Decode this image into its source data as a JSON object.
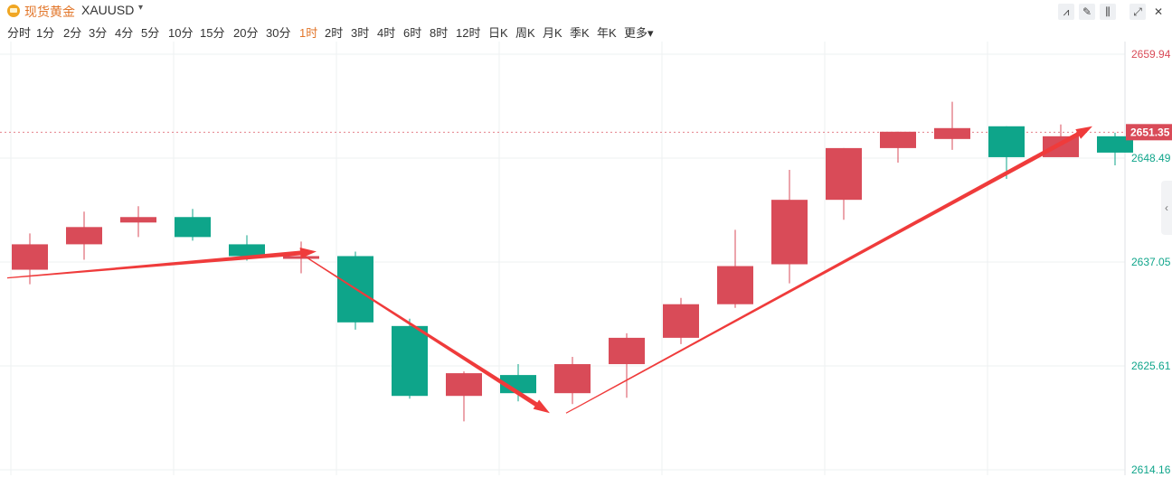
{
  "header": {
    "title_cn": "现货黄金",
    "symbol": "XAUUSD",
    "caret": "▾",
    "tools": [
      {
        "name": "indicator-icon",
        "glyph": "⩘"
      },
      {
        "name": "draw-icon",
        "glyph": "✎"
      },
      {
        "name": "candle-type-icon",
        "glyph": "⫼"
      },
      {
        "name": "fullscreen-icon",
        "glyph": "⤢"
      },
      {
        "name": "close-icon",
        "glyph": "✕"
      }
    ]
  },
  "periods": [
    {
      "label": "分时",
      "active": false
    },
    {
      "label": "1分",
      "active": false
    },
    {
      "label": "2分",
      "active": false
    },
    {
      "label": "3分",
      "active": false
    },
    {
      "label": "4分",
      "active": false
    },
    {
      "label": "5分",
      "active": false
    },
    {
      "label": "10分",
      "active": false
    },
    {
      "label": "15分",
      "active": false
    },
    {
      "label": "20分",
      "active": false
    },
    {
      "label": "30分",
      "active": false
    },
    {
      "label": "1时",
      "active": true
    },
    {
      "label": "2时",
      "active": false
    },
    {
      "label": "3时",
      "active": false
    },
    {
      "label": "4时",
      "active": false
    },
    {
      "label": "6时",
      "active": false
    },
    {
      "label": "8时",
      "active": false
    },
    {
      "label": "12时",
      "active": false
    },
    {
      "label": "日K",
      "active": false
    },
    {
      "label": "周K",
      "active": false
    },
    {
      "label": "月K",
      "active": false
    },
    {
      "label": "季K",
      "active": false
    },
    {
      "label": "年K",
      "active": false
    },
    {
      "label": "更多▾",
      "active": false
    }
  ],
  "side_tab": {
    "glyph": "‹"
  },
  "colors": {
    "up": "#d94b58",
    "down": "#0ea58a",
    "arrow": "#ef3b3b",
    "grid": "#eef0f2",
    "current_price_bg": "#d94b58",
    "axis_up_text": "#d94b58",
    "axis_down_text": "#10a58b"
  },
  "chart_data": {
    "type": "candlestick",
    "ylim": [
      2614.16,
      2659.94
    ],
    "y_ticks": [
      {
        "value": 2659.94,
        "label": "2659.94",
        "tone": "up"
      },
      {
        "value": 2648.49,
        "label": "2648.49",
        "tone": "down"
      },
      {
        "value": 2637.05,
        "label": "2637.05",
        "tone": "down"
      },
      {
        "value": 2625.61,
        "label": "2625.61",
        "tone": "down"
      },
      {
        "value": 2614.16,
        "label": "2614.16",
        "tone": "down"
      }
    ],
    "current_price": {
      "value": 2651.35,
      "label": "2651.35"
    },
    "candles": [
      {
        "open": 2636.2,
        "close": 2639.0,
        "high": 2640.2,
        "low": 2634.6,
        "dir": "up"
      },
      {
        "open": 2639.0,
        "close": 2640.9,
        "high": 2642.6,
        "low": 2637.3,
        "dir": "up"
      },
      {
        "open": 2641.4,
        "close": 2642.0,
        "high": 2643.2,
        "low": 2639.8,
        "dir": "up"
      },
      {
        "open": 2642.0,
        "close": 2639.8,
        "high": 2642.9,
        "low": 2639.4,
        "dir": "down"
      },
      {
        "open": 2639.0,
        "close": 2637.7,
        "high": 2640.0,
        "low": 2637.2,
        "dir": "down"
      },
      {
        "open": 2637.4,
        "close": 2637.7,
        "high": 2639.3,
        "low": 2635.8,
        "dir": "up"
      },
      {
        "open": 2637.7,
        "close": 2630.4,
        "high": 2638.2,
        "low": 2629.6,
        "dir": "down"
      },
      {
        "open": 2630.0,
        "close": 2622.3,
        "high": 2630.8,
        "low": 2622.0,
        "dir": "down"
      },
      {
        "open": 2622.3,
        "close": 2624.8,
        "high": 2625.0,
        "low": 2619.5,
        "dir": "up"
      },
      {
        "open": 2624.6,
        "close": 2622.6,
        "high": 2625.8,
        "low": 2621.7,
        "dir": "down"
      },
      {
        "open": 2622.6,
        "close": 2625.8,
        "high": 2626.6,
        "low": 2621.4,
        "dir": "up"
      },
      {
        "open": 2625.8,
        "close": 2628.7,
        "high": 2629.2,
        "low": 2622.1,
        "dir": "up"
      },
      {
        "open": 2628.7,
        "close": 2632.4,
        "high": 2633.1,
        "low": 2628.0,
        "dir": "up"
      },
      {
        "open": 2632.4,
        "close": 2636.6,
        "high": 2640.6,
        "low": 2632.0,
        "dir": "up"
      },
      {
        "open": 2636.8,
        "close": 2643.9,
        "high": 2647.2,
        "low": 2634.7,
        "dir": "up"
      },
      {
        "open": 2643.9,
        "close": 2649.6,
        "high": 2649.6,
        "low": 2641.7,
        "dir": "up"
      },
      {
        "open": 2649.6,
        "close": 2651.4,
        "high": 2651.4,
        "low": 2648.0,
        "dir": "up"
      },
      {
        "open": 2650.6,
        "close": 2651.8,
        "high": 2654.7,
        "low": 2649.4,
        "dir": "up"
      },
      {
        "open": 2652.0,
        "close": 2648.6,
        "high": 2652.0,
        "low": 2646.2,
        "dir": "down"
      },
      {
        "open": 2648.6,
        "close": 2650.9,
        "high": 2652.2,
        "low": 2648.6,
        "dir": "up"
      },
      {
        "open": 2650.9,
        "close": 2649.1,
        "high": 2651.3,
        "low": 2647.7,
        "dir": "down"
      }
    ],
    "arrows": [
      {
        "from": [
          0,
          2635.3
        ],
        "to": [
          5.7,
          2638.2
        ]
      },
      {
        "from": [
          5.4,
          2638.0
        ],
        "to": [
          10.0,
          2620.4
        ]
      },
      {
        "from": [
          10.3,
          2620.4
        ],
        "to": [
          20.0,
          2652.0
        ]
      }
    ]
  }
}
